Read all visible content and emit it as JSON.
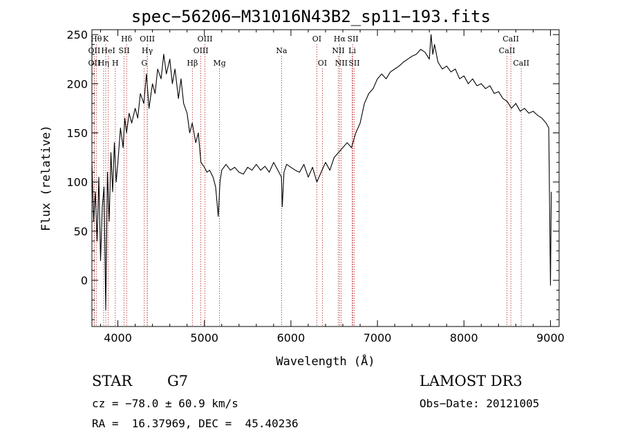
{
  "chart_data": {
    "type": "line",
    "title": "spec−56206−M31016N43B2_sp11−193.fits",
    "xlabel": "Wavelength (Å)",
    "ylabel": "Flux (relative)",
    "xlim": [
      3700,
      9100
    ],
    "ylim": [
      -47,
      255
    ],
    "xticks": [
      4000,
      5000,
      6000,
      7000,
      8000,
      9000
    ],
    "yticks": [
      0,
      50,
      100,
      150,
      200,
      250
    ],
    "series": [
      {
        "color": "#000000",
        "x": [
          3700,
          3720,
          3740,
          3760,
          3780,
          3800,
          3820,
          3840,
          3860,
          3880,
          3900,
          3920,
          3940,
          3960,
          3980,
          4000,
          4030,
          4060,
          4080,
          4100,
          4130,
          4160,
          4200,
          4230,
          4260,
          4300,
          4330,
          4360,
          4400,
          4430,
          4460,
          4500,
          4530,
          4560,
          4600,
          4630,
          4660,
          4700,
          4730,
          4760,
          4800,
          4830,
          4860,
          4900,
          4930,
          4960,
          5000,
          5030,
          5060,
          5100,
          5130,
          5160,
          5180,
          5200,
          5250,
          5300,
          5350,
          5400,
          5450,
          5500,
          5550,
          5600,
          5650,
          5700,
          5750,
          5800,
          5850,
          5890,
          5900,
          5920,
          5950,
          6000,
          6050,
          6100,
          6150,
          6200,
          6250,
          6300,
          6350,
          6400,
          6450,
          6500,
          6550,
          6600,
          6650,
          6700,
          6750,
          6800,
          6850,
          6900,
          6950,
          7000,
          7050,
          7100,
          7150,
          7200,
          7250,
          7300,
          7350,
          7400,
          7450,
          7500,
          7550,
          7600,
          7620,
          7640,
          7660,
          7700,
          7750,
          7800,
          7850,
          7900,
          7950,
          8000,
          8050,
          8100,
          8150,
          8200,
          8250,
          8300,
          8350,
          8400,
          8450,
          8500,
          8550,
          8600,
          8650,
          8700,
          8750,
          8800,
          8850,
          8900,
          8950,
          8980,
          9000,
          9010
        ],
        "y": [
          120,
          60,
          90,
          40,
          105,
          20,
          75,
          95,
          -30,
          110,
          60,
          130,
          90,
          140,
          100,
          120,
          155,
          135,
          165,
          150,
          170,
          160,
          175,
          165,
          190,
          180,
          210,
          175,
          200,
          190,
          215,
          205,
          230,
          210,
          225,
          200,
          215,
          185,
          205,
          180,
          170,
          150,
          160,
          140,
          150,
          120,
          115,
          110,
          112,
          105,
          95,
          65,
          100,
          112,
          118,
          112,
          115,
          110,
          108,
          115,
          112,
          118,
          112,
          116,
          110,
          120,
          112,
          105,
          75,
          110,
          118,
          115,
          112,
          110,
          118,
          105,
          115,
          100,
          110,
          120,
          112,
          125,
          130,
          135,
          140,
          135,
          150,
          160,
          180,
          190,
          195,
          205,
          210,
          205,
          212,
          215,
          218,
          222,
          225,
          228,
          230,
          235,
          232,
          225,
          250,
          230,
          240,
          222,
          215,
          218,
          212,
          215,
          205,
          208,
          200,
          205,
          198,
          200,
          195,
          198,
          190,
          192,
          185,
          182,
          175,
          180,
          172,
          175,
          170,
          172,
          168,
          165,
          160,
          155,
          -5,
          90
        ]
      }
    ],
    "lines": [
      {
        "x": 3750,
        "row": 0,
        "label": "Hθ"
      },
      {
        "x": 3860,
        "row": 0,
        "label": "K"
      },
      {
        "x": 4101,
        "row": 0,
        "label": "Hδ"
      },
      {
        "x": 4340,
        "row": 0,
        "label": "OIII"
      },
      {
        "x": 5007,
        "row": 0,
        "label": "OIII"
      },
      {
        "x": 6300,
        "row": 0,
        "label": "OI"
      },
      {
        "x": 6563,
        "row": 0,
        "label": "Hα"
      },
      {
        "x": 6716,
        "row": 0,
        "label": "SII"
      },
      {
        "x": 8542,
        "row": 0,
        "label": "CaII"
      },
      {
        "x": 3727,
        "row": 1,
        "label": "OII"
      },
      {
        "x": 3889,
        "row": 1,
        "label": "HeI"
      },
      {
        "x": 4072,
        "row": 1,
        "label": "SII"
      },
      {
        "x": 4340,
        "row": 1,
        "label": "Hγ"
      },
      {
        "x": 4959,
        "row": 1,
        "label": "OIII"
      },
      {
        "x": 5893,
        "row": 1,
        "label": "Na"
      },
      {
        "x": 6548,
        "row": 1,
        "label": "NII"
      },
      {
        "x": 6708,
        "row": 1,
        "label": "Li"
      },
      {
        "x": 8498,
        "row": 1,
        "label": "CaII"
      },
      {
        "x": 3727,
        "row": 2,
        "label": "OII"
      },
      {
        "x": 3835,
        "row": 2,
        "label": "Hη"
      },
      {
        "x": 3970,
        "row": 2,
        "label": "H"
      },
      {
        "x": 4305,
        "row": 2,
        "label": "G"
      },
      {
        "x": 4861,
        "row": 2,
        "label": "Hβ"
      },
      {
        "x": 5175,
        "row": 2,
        "label": "Mg"
      },
      {
        "x": 6364,
        "row": 2,
        "label": "OI"
      },
      {
        "x": 6583,
        "row": 2,
        "label": "NII"
      },
      {
        "x": 6731,
        "row": 2,
        "label": "SII"
      },
      {
        "x": 8662,
        "row": 2,
        "label": "CaII"
      }
    ]
  },
  "info": {
    "class": "STAR",
    "subclass": "G7",
    "survey": "LAMOST DR3",
    "redshift": "cz = −78.0 ± 60.9 km/s",
    "obs_date": "Obs−Date: 20121005",
    "coords": "RA =  16.37969, DEC =  45.40236"
  }
}
